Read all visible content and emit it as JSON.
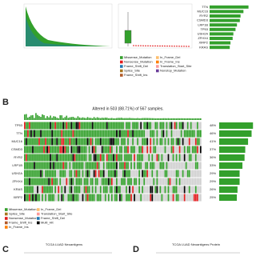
{
  "panels": {
    "b": "B",
    "c": "C",
    "d": "D"
  },
  "panel_b_title": "Altered in 503 (88.71%) of 567 samples.",
  "panel_c_title": "TCGA LUAD Neoantigens",
  "panel_d_title": "TCGA LUAD Neoantigens Protein",
  "legend_a": [
    {
      "name": "Missense_Mutation",
      "color": "#33a02c"
    },
    {
      "name": "In_Frame_Del",
      "color": "#fdbf6f"
    },
    {
      "name": "Nonsense_Mutation",
      "color": "#e31a1c"
    },
    {
      "name": "In_Frame_Ins",
      "color": "#ff7f00"
    },
    {
      "name": "Frame_Shift_Del",
      "color": "#1f78b4"
    },
    {
      "name": "Translation_Start_Site",
      "color": "#fb9a99"
    },
    {
      "name": "Splice_Site",
      "color": "#a6761d"
    },
    {
      "name": "Nonstop_Mutation",
      "color": "#6a3d9a"
    },
    {
      "name": "Frame_Shift_Ins",
      "color": "#b15928"
    }
  ],
  "legend_b": [
    {
      "name": "Missense_Mutation",
      "color": "#33a02c"
    },
    {
      "name": "In_Frame_Del",
      "color": "#fdbf6f"
    },
    {
      "name": "Splice_Site",
      "color": "#a6761d"
    },
    {
      "name": "Translation_Start_Site",
      "color": "#fb9a99"
    },
    {
      "name": "Nonsense_Mutation",
      "color": "#e31a1c"
    },
    {
      "name": "Frame_Shift_Del",
      "color": "#1f78b4"
    },
    {
      "name": "Frame_Shift_Ins",
      "color": "#b15928"
    },
    {
      "name": "Multi_Hit",
      "color": "#000000"
    },
    {
      "name": "In_Frame_Ins",
      "color": "#ff7f00"
    }
  ],
  "chart_data": [
    {
      "type": "bar",
      "orientation": "horizontal",
      "color": "#33a02c",
      "categories": [
        "TTN",
        "MUC16",
        "RYR2",
        "CSMD3",
        "LRP1B",
        "TP53",
        "USH2A",
        "ZFHX4",
        "XIRP2",
        "KRAS"
      ],
      "values": [
        270,
        235,
        215,
        210,
        190,
        180,
        165,
        160,
        145,
        140
      ],
      "xlim": [
        0,
        300
      ]
    },
    {
      "type": "bar",
      "orientation": "horizontal",
      "color": "#33a02c",
      "categories": [
        "TP53",
        "TTN",
        "MUC16",
        "CSMD3",
        "RYR2",
        "LRP1B",
        "USH2A",
        "ZFHX4",
        "KRAS",
        "XIRP2"
      ],
      "values": [
        48,
        46,
        41,
        37,
        36,
        33,
        29,
        29,
        26,
        25
      ],
      "value_labels": [
        "48%",
        "46%",
        "41%",
        "37%",
        "36%",
        "33%",
        "29%",
        "29%",
        "26%",
        "25%"
      ],
      "xlim": [
        0,
        50
      ]
    }
  ]
}
